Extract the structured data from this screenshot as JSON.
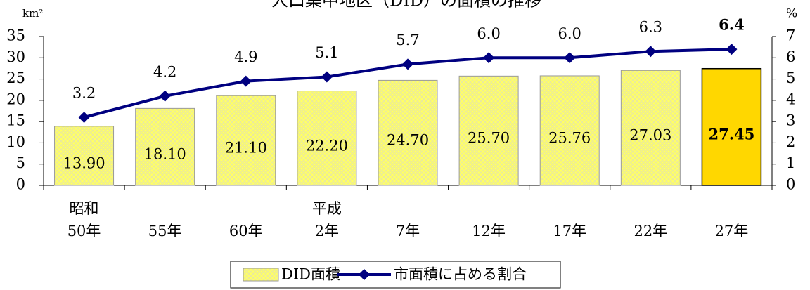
{
  "chart_data": {
    "type": "bar_line",
    "title": "人口集中地区（DID）の面積の推移",
    "y_unit": "km²",
    "y2_unit": "%",
    "categories": [
      "昭和\n50年",
      "55年",
      "60年",
      "平成\n2年",
      "7年",
      "12年",
      "17年",
      "22年",
      "27年"
    ],
    "series": [
      {
        "name": "DID面積",
        "type": "bar",
        "color": "#ffff66",
        "colors": [
          "#ffff66",
          "#ffff66",
          "#ffff66",
          "#ffff66",
          "#ffff66",
          "#ffff66",
          "#ffff66",
          "#ffff66",
          "#ffd700"
        ],
        "values": [
          13.9,
          18.1,
          21.1,
          22.2,
          24.7,
          25.7,
          25.76,
          27.03,
          27.45
        ],
        "value_labels": [
          "13.90",
          "18.10",
          "21.10",
          "22.20",
          "24.70",
          "25.70",
          "25.76",
          "27.03",
          "27.45"
        ]
      },
      {
        "name": "市面積に占める割合",
        "type": "line",
        "axis": "y2",
        "color": "#000080",
        "values": [
          3.2,
          4.2,
          4.9,
          5.1,
          5.7,
          6.0,
          6.0,
          6.3,
          6.4
        ],
        "value_labels": [
          "3.2",
          "4.2",
          "4.9",
          "5.1",
          "5.7",
          "6.0",
          "6.0",
          "6.3",
          "6.4"
        ]
      }
    ],
    "ylim": [
      0,
      35
    ],
    "yticks": [
      0,
      5,
      10,
      15,
      20,
      25,
      30,
      35
    ],
    "y2lim": [
      0,
      7
    ],
    "y2ticks": [
      0,
      1,
      2,
      3,
      4,
      5,
      6,
      7
    ]
  }
}
